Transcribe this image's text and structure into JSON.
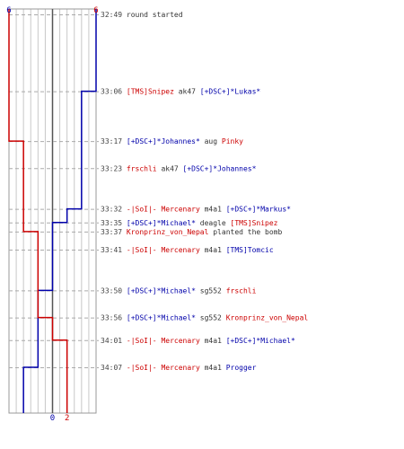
{
  "chart_data": {
    "type": "line",
    "title": "",
    "xlabel": "",
    "ylabel": "",
    "x_axis": {
      "ticks": [
        0,
        2
      ],
      "top_labels": {
        "ct": "6",
        "t": "6"
      }
    },
    "colors": {
      "ct": "#0000aa",
      "t": "#cc0000",
      "time": "#444444",
      "text": "#333333",
      "grid": "#c8c8c8",
      "zero": "#555555",
      "dash": "#aaaaaa"
    },
    "series": [
      {
        "team": "ct",
        "values": [
          6,
          6,
          5,
          5,
          5,
          4,
          3,
          3,
          3,
          2,
          2,
          2,
          1,
          0
        ]
      },
      {
        "team": "t",
        "values": [
          6,
          6,
          6,
          5,
          5,
          5,
          5,
          4,
          4,
          4,
          3,
          2,
          2,
          2
        ]
      }
    ],
    "events": [
      {
        "time": "32:49",
        "parts": [
          {
            "text": "round started",
            "team": "info"
          }
        ]
      },
      {
        "time": "33:06",
        "parts": [
          {
            "text": "[TMS]Snipez",
            "team": "t"
          },
          {
            "text": " ak47 ",
            "team": "weapon"
          },
          {
            "text": "[+DSC+]*Lukas*",
            "team": "ct"
          }
        ]
      },
      {
        "time": "33:17",
        "parts": [
          {
            "text": "[+DSC+]*Johannes*",
            "team": "ct"
          },
          {
            "text": " aug ",
            "team": "weapon"
          },
          {
            "text": "Pinky",
            "team": "t"
          }
        ]
      },
      {
        "time": "33:23",
        "parts": [
          {
            "text": "frschli",
            "team": "t"
          },
          {
            "text": " ak47 ",
            "team": "weapon"
          },
          {
            "text": "[+DSC+]*Johannes*",
            "team": "ct"
          }
        ]
      },
      {
        "time": "33:32",
        "parts": [
          {
            "text": "-|SoI|- Mercenary",
            "team": "t"
          },
          {
            "text": " m4a1 ",
            "team": "weapon"
          },
          {
            "text": "[+DSC+]*Markus*",
            "team": "ct"
          }
        ]
      },
      {
        "time": "33:35",
        "parts": [
          {
            "text": "[+DSC+]*Michael*",
            "team": "ct"
          },
          {
            "text": " deagle ",
            "team": "weapon"
          },
          {
            "text": "[TMS]Snipez",
            "team": "t"
          }
        ]
      },
      {
        "time": "33:37",
        "parts": [
          {
            "text": "Kronprinz_von_Nepal",
            "team": "t"
          },
          {
            "text": " planted the bomb",
            "team": "info"
          }
        ]
      },
      {
        "time": "33:41",
        "parts": [
          {
            "text": "-|SoI|- Mercenary",
            "team": "t"
          },
          {
            "text": " m4a1 ",
            "team": "weapon"
          },
          {
            "text": "[TMS]Tomcic",
            "team": "ct"
          }
        ]
      },
      {
        "time": "33:50",
        "parts": [
          {
            "text": "[+DSC+]*Michael*",
            "team": "ct"
          },
          {
            "text": " sg552 ",
            "team": "weapon"
          },
          {
            "text": "frschli",
            "team": "t"
          }
        ]
      },
      {
        "time": "33:56",
        "parts": [
          {
            "text": "[+DSC+]*Michael*",
            "team": "ct"
          },
          {
            "text": " sg552 ",
            "team": "weapon"
          },
          {
            "text": "Kronprinz_von_Nepal",
            "team": "t"
          }
        ]
      },
      {
        "time": "34:01",
        "parts": [
          {
            "text": "-|SoI|- Mercenary",
            "team": "t"
          },
          {
            "text": " m4a1 ",
            "team": "weapon"
          },
          {
            "text": "[+DSC+]*Michael*",
            "team": "ct"
          }
        ]
      },
      {
        "time": "34:07",
        "parts": [
          {
            "text": "-|SoI|- Mercenary",
            "team": "t"
          },
          {
            "text": " m4a1 ",
            "team": "weapon"
          },
          {
            "text": "Progger",
            "team": "ct"
          }
        ]
      }
    ]
  }
}
